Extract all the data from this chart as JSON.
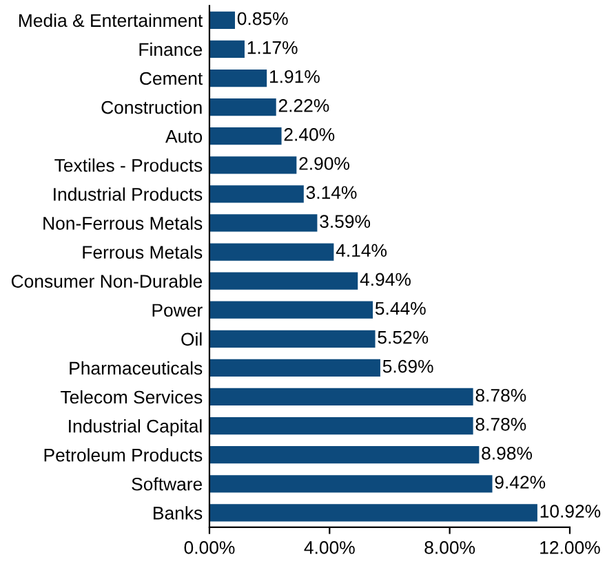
{
  "chart_data": {
    "type": "bar",
    "orientation": "horizontal",
    "categories": [
      "Media & Entertainment",
      "Finance",
      "Cement",
      "Construction",
      "Auto",
      "Textiles - Products",
      "Industrial Products",
      "Non-Ferrous Metals",
      "Ferrous Metals",
      "Consumer Non-Durable",
      "Power",
      "Oil",
      "Pharmaceuticals",
      "Telecom Services",
      "Industrial Capital",
      "Petroleum Products",
      "Software",
      "Banks"
    ],
    "values": [
      0.85,
      1.17,
      1.91,
      2.22,
      2.4,
      2.9,
      3.14,
      3.59,
      4.14,
      4.94,
      5.44,
      5.52,
      5.69,
      8.78,
      8.78,
      8.98,
      9.42,
      10.92
    ],
    "value_labels": [
      "0.85%",
      "1.17%",
      "1.91%",
      "2.22%",
      "2.40%",
      "2.90%",
      "3.14%",
      "3.59%",
      "4.14%",
      "4.94%",
      "5.44%",
      "5.52%",
      "5.69%",
      "8.78%",
      "8.78%",
      "8.98%",
      "9.42%",
      "10.92%"
    ],
    "color": "#0d4a7c",
    "xlim": [
      0,
      12
    ],
    "xticks": [
      {
        "value": 0,
        "label": "0.00%"
      },
      {
        "value": 4,
        "label": "4.00%"
      },
      {
        "value": 8,
        "label": "8.00%"
      },
      {
        "value": 12,
        "label": "12.00%"
      }
    ],
    "grid": false,
    "legend": false
  }
}
